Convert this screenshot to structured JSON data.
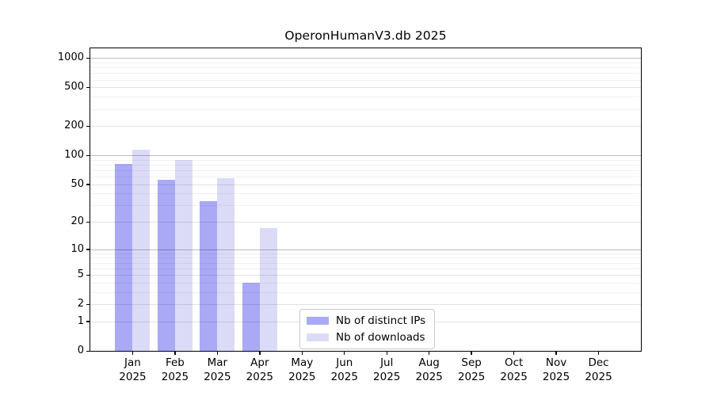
{
  "chart_data": {
    "type": "bar",
    "title": "OperonHumanV3.db 2025",
    "scale": "log1p",
    "categories": [
      "Jan",
      "Feb",
      "Mar",
      "Apr",
      "May",
      "Jun",
      "Jul",
      "Aug",
      "Sep",
      "Oct",
      "Nov",
      "Dec"
    ],
    "year_label": "2025",
    "series": [
      {
        "name": "Nb of distinct IPs",
        "color": "#a9a9f6",
        "values": [
          81,
          56,
          33,
          4,
          0,
          0,
          0,
          0,
          0,
          0,
          0,
          0
        ]
      },
      {
        "name": "Nb of downloads",
        "color": "#dbdbf8",
        "values": [
          115,
          90,
          58,
          17,
          0,
          0,
          0,
          0,
          0,
          0,
          0,
          0
        ]
      }
    ],
    "yticks": [
      0,
      1,
      2,
      5,
      10,
      20,
      50,
      100,
      200,
      500,
      1000
    ],
    "yticks_strong": [
      10,
      100,
      1000
    ],
    "minor_yticks": [
      3,
      4,
      6,
      7,
      8,
      9,
      30,
      40,
      60,
      70,
      80,
      90,
      300,
      400,
      600,
      700,
      800,
      900
    ],
    "ylim": [
      0,
      1260
    ],
    "xlabel": "",
    "ylabel": "",
    "grid": true,
    "legend_position": "lower center"
  }
}
